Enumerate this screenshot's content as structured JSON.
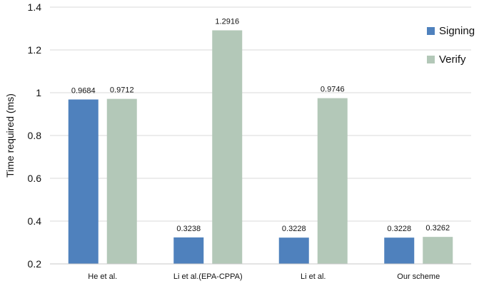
{
  "chart_data": {
    "type": "bar",
    "title": "",
    "xlabel": "",
    "ylabel": "Time required (ms)",
    "ylim": [
      0.2,
      1.4
    ],
    "yticks": [
      0.2,
      0.4,
      0.6,
      0.8,
      1,
      1.2,
      1.4
    ],
    "ytick_labels": [
      "0.2",
      "0.4",
      "0.6",
      "0.8",
      "1",
      "1.2",
      "1.4"
    ],
    "grid": "horizontal",
    "legend_position": "top-right",
    "categories": [
      "He et al.",
      "Li et al.(EPA-CPPA)",
      "Li et al.",
      "Our scheme"
    ],
    "series": [
      {
        "name": "Signing",
        "color": "#4f81bd",
        "values": [
          0.9684,
          null,
          null,
          0.3228
        ],
        "labels": [
          "0.9684",
          "",
          "",
          "0.3228"
        ]
      },
      {
        "name": "Verify",
        "color": "#b3c8b8",
        "values": [
          0.9712,
          1.2916,
          0.9746,
          0.3262
        ],
        "labels": [
          "0.9712",
          "1.2916",
          "0.9746",
          "0.3262"
        ]
      }
    ],
    "extra_bars": [
      {
        "category_index": 1,
        "series_index": 0,
        "value": 0.3238,
        "label": "0.3238"
      },
      {
        "category_index": 2,
        "series_index": 0,
        "value": 0.3228,
        "label": "0.3228"
      }
    ]
  }
}
